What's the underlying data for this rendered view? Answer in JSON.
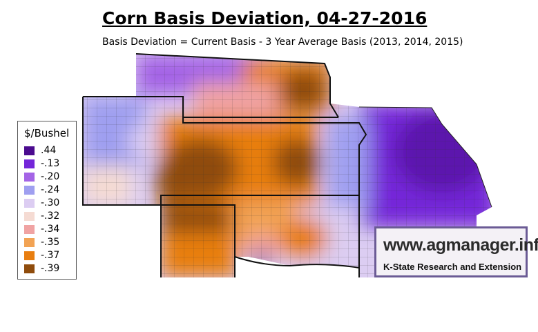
{
  "title": "Corn Basis Deviation, 04-27-2016",
  "subtitle": "Basis Deviation = Current Basis - 3 Year Average Basis (2013, 2014, 2015)",
  "legend": {
    "title": "$/Bushel",
    "items": [
      {
        "label": " .44",
        "color": "#4b0b8f"
      },
      {
        "label": "-.13",
        "color": "#7426d9"
      },
      {
        "label": "-.20",
        "color": "#a464e6"
      },
      {
        "label": "-.24",
        "color": "#9f9ff0"
      },
      {
        "label": "-.30",
        "color": "#dccdf2"
      },
      {
        "label": "-.32",
        "color": "#f5dbd3"
      },
      {
        "label": "-.34",
        "color": "#f0a3a3"
      },
      {
        "label": "-.35",
        "color": "#f2a354"
      },
      {
        "label": "-.37",
        "color": "#e87e10"
      },
      {
        "label": "-.39",
        "color": "#8f4c0c"
      }
    ]
  },
  "logo": {
    "url": "www.agmanager.info",
    "org": "K-State Research and Extension"
  },
  "colors": {
    "deep_purple": "#4b0b8f",
    "purple": "#7426d9",
    "lavender": "#9f9ff0",
    "pale": "#dccdf2",
    "peach": "#f5dbd3",
    "pink": "#f0a3a3",
    "light_orange": "#f2a354",
    "orange": "#e87e10",
    "brown": "#8f4c0c"
  }
}
